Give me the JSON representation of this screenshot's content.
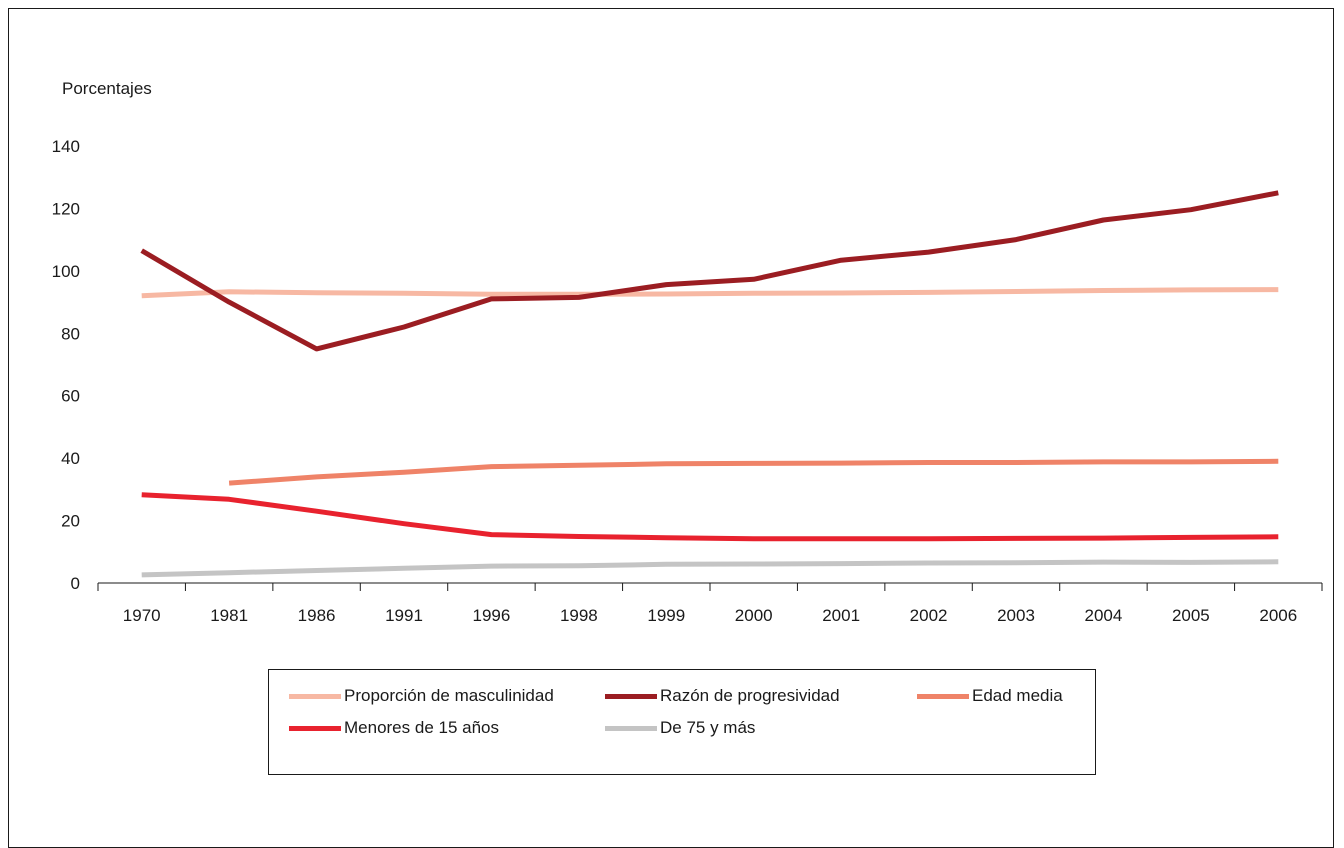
{
  "chart_data": {
    "type": "line",
    "title": "",
    "ylabel": "Porcentajes",
    "xlabel": "",
    "categories": [
      "1970",
      "1981",
      "1986",
      "1991",
      "1996",
      "1998",
      "1999",
      "2000",
      "2001",
      "2002",
      "2003",
      "2004",
      "2005",
      "2006"
    ],
    "ylim": [
      0,
      140
    ],
    "yticks": [
      0,
      20,
      40,
      60,
      80,
      100,
      120,
      140
    ],
    "grid": false,
    "legend_position": "bottom",
    "series": [
      {
        "name": "Proporción de masculinidad",
        "color": "#f7b8a3",
        "values": [
          92,
          93.3,
          93,
          92.8,
          92.5,
          92.5,
          92.6,
          92.8,
          92.9,
          93.1,
          93.4,
          93.7,
          93.9,
          94
        ]
      },
      {
        "name": "Razón de progresividad",
        "color": "#9b1d22",
        "values": [
          106.5,
          90,
          75,
          82,
          91,
          91.5,
          95.6,
          97.3,
          103.4,
          106,
          110,
          116.3,
          119.6,
          125
        ]
      },
      {
        "name": "Edad media",
        "color": "#ef8368",
        "values": [
          null,
          32,
          34,
          35.5,
          37.3,
          37.7,
          38.2,
          38.3,
          38.4,
          38.6,
          38.6,
          38.8,
          38.8,
          39
        ]
      },
      {
        "name": "Menores de 15 años",
        "color": "#e8222e",
        "values": [
          28.3,
          26.8,
          23,
          19,
          15.5,
          14.9,
          14.5,
          14.2,
          14.2,
          14.2,
          14.3,
          14.4,
          14.6,
          14.8
        ]
      },
      {
        "name": "De 75 y más",
        "color": "#c4c4c4",
        "values": [
          2.6,
          3.3,
          4,
          4.7,
          5.4,
          5.5,
          6,
          6.1,
          6.2,
          6.4,
          6.5,
          6.7,
          6.6,
          6.8
        ]
      }
    ]
  }
}
